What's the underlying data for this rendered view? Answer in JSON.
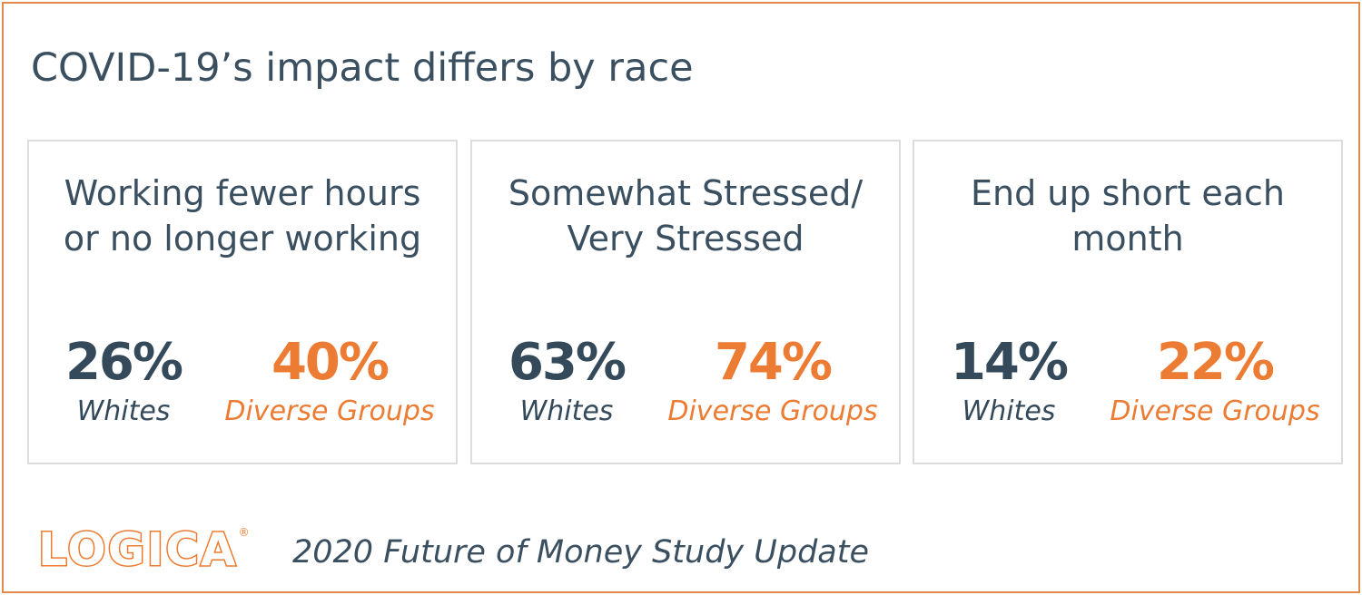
{
  "title": "COVID-19’s impact differs by race",
  "cards": [
    {
      "heading": "Working fewer hours or no longer working",
      "left_value": "26%",
      "left_label": "Whites",
      "right_value": "40%",
      "right_label": "Diverse Groups"
    },
    {
      "heading": "Somewhat Stressed/ Very Stressed",
      "left_value": "63%",
      "left_label": "Whites",
      "right_value": "74%",
      "right_label": "Diverse Groups"
    },
    {
      "heading": "End up short each month",
      "left_value": "14%",
      "left_label": "Whites",
      "right_value": "22%",
      "right_label": "Diverse Groups"
    }
  ],
  "logo": {
    "text": "LOGICA",
    "registered": "®"
  },
  "footer": "2020 Future of Money Study Update",
  "colors": {
    "accent": "#ec7c34",
    "primary": "#34495a",
    "border": "#e28a4c",
    "card_border": "#dcdcdc"
  }
}
